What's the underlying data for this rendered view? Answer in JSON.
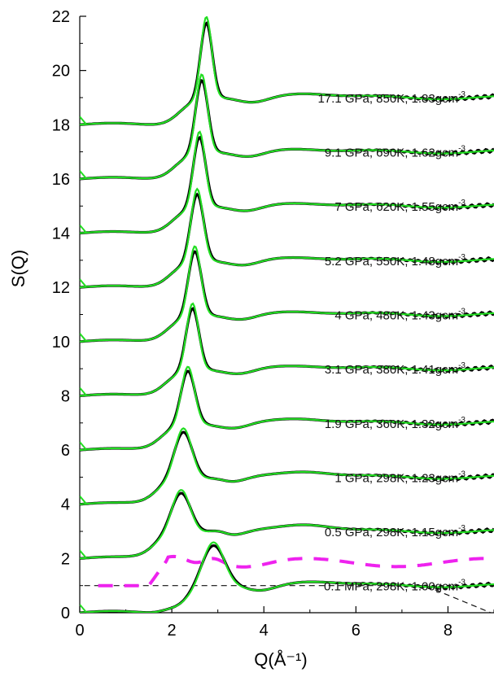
{
  "chart_data": {
    "type": "line",
    "title": "",
    "xlabel": "Q(Å⁻¹)",
    "ylabel": "S(Q)",
    "xlim": [
      0,
      9
    ],
    "ylim": [
      0,
      22
    ],
    "x_ticks": [
      0,
      2,
      4,
      6,
      8
    ],
    "y_ticks": [
      0,
      2,
      4,
      6,
      8,
      10,
      12,
      14,
      16,
      18,
      20,
      22
    ],
    "grid": false,
    "series_styles": {
      "experiment_color": "#000000",
      "fit_color": "#22dd22",
      "dashed_reference_color": "#111111",
      "magenta_color": "#ee22ee"
    },
    "curves": [
      {
        "label": "0.1 MPa, 298K, 1.00gcm",
        "label_sup": "-3",
        "offset": 0,
        "peak_q": 2.9,
        "peak_h": 1.5,
        "peak_w": 0.35,
        "pre_q": 1.95,
        "pre_h": 1.1,
        "second_q": 5.0,
        "second_h": 0.2
      },
      {
        "label": "0.5 GPa, 298K, 1.15gcm",
        "label_sup": "-3",
        "offset": 2,
        "peak_q": 2.2,
        "peak_h": 1.5,
        "peak_w": 0.3,
        "pre_q": 3.0,
        "pre_h": 1.2,
        "second_q": 4.9,
        "second_h": 0.3
      },
      {
        "label": "1 GPa, 298K, 1.23gcm",
        "label_sup": "-3",
        "offset": 4,
        "peak_q": 2.25,
        "peak_h": 1.75,
        "peak_w": 0.28,
        "pre_q": 3.0,
        "pre_h": 1.1,
        "second_q": 4.9,
        "second_h": 0.25
      },
      {
        "label": "1.9 GPa, 360K, 1.32gcm",
        "label_sup": "-3",
        "offset": 6,
        "peak_q": 2.35,
        "peak_h": 2.0,
        "peak_w": 0.22,
        "pre_q": 3.0,
        "pre_h": 0,
        "second_q": 4.8,
        "second_h": 0.2
      },
      {
        "label": "3.1 GPa, 380K, 1.41gcm",
        "label_sup": "-3",
        "offset": 8,
        "peak_q": 2.45,
        "peak_h": 2.3,
        "peak_w": 0.2,
        "pre_q": 3.0,
        "pre_h": 0,
        "second_q": 4.8,
        "second_h": 0.15
      },
      {
        "label": "4 GPa, 480K, 1.43gcm",
        "label_sup": "-3",
        "offset": 10,
        "peak_q": 2.5,
        "peak_h": 2.4,
        "peak_w": 0.2,
        "pre_q": 3.0,
        "pre_h": 0,
        "second_q": 4.8,
        "second_h": 0.15
      },
      {
        "label": "5.2 GPa, 550K, 1.48gcm",
        "label_sup": "-3",
        "offset": 12,
        "peak_q": 2.55,
        "peak_h": 2.5,
        "peak_w": 0.2,
        "pre_q": 3.0,
        "pre_h": 0,
        "second_q": 4.8,
        "second_h": 0.15
      },
      {
        "label": "7 GPa, 620K, 1.55gcm",
        "label_sup": "-3",
        "offset": 14,
        "peak_q": 2.6,
        "peak_h": 2.6,
        "peak_w": 0.19,
        "pre_q": 3.0,
        "pre_h": 0,
        "second_q": 4.8,
        "second_h": 0.15
      },
      {
        "label": "9.1 GPa, 690K, 1.62gcm",
        "label_sup": "-3",
        "offset": 16,
        "peak_q": 2.65,
        "peak_h": 2.7,
        "peak_w": 0.19,
        "pre_q": 3.0,
        "pre_h": 0,
        "second_q": 4.8,
        "second_h": 0.15
      },
      {
        "label": "17.1 GPa, 850K, 1.83gcm",
        "label_sup": "-3",
        "offset": 18,
        "peak_q": 2.75,
        "peak_h": 2.8,
        "peak_w": 0.18,
        "pre_q": 3.0,
        "pre_h": 0,
        "second_q": 4.9,
        "second_h": 0.2
      }
    ]
  }
}
